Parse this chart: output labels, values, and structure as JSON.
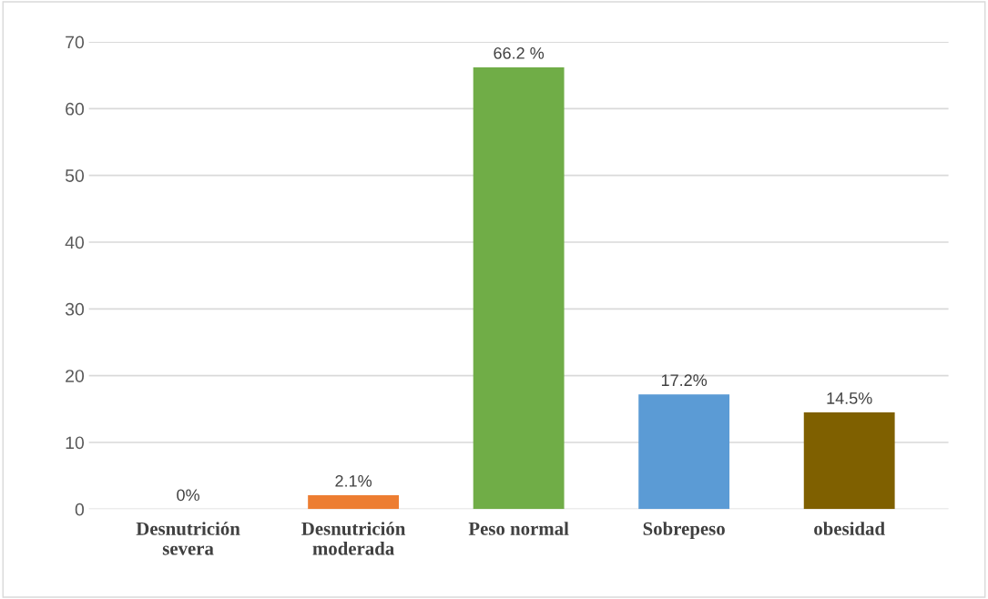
{
  "chart_data": {
    "type": "bar",
    "categories": [
      "Desnutrición\nsevera",
      "Desnutrición\nmoderada",
      "Peso normal",
      "Sobrepeso",
      "obesidad"
    ],
    "values": [
      0,
      2.1,
      66.2,
      17.2,
      14.5
    ],
    "value_labels": [
      "0%",
      "2.1%",
      "66.2 %",
      "17.2%",
      "14.5%"
    ],
    "colors": [
      "#b5231a",
      "#ed7d31",
      "#70ad47",
      "#5b9bd5",
      "#7f6000"
    ],
    "ylim": [
      0,
      70
    ],
    "yticks": [
      0,
      10,
      20,
      30,
      40,
      50,
      60,
      70
    ],
    "grid": "y"
  }
}
